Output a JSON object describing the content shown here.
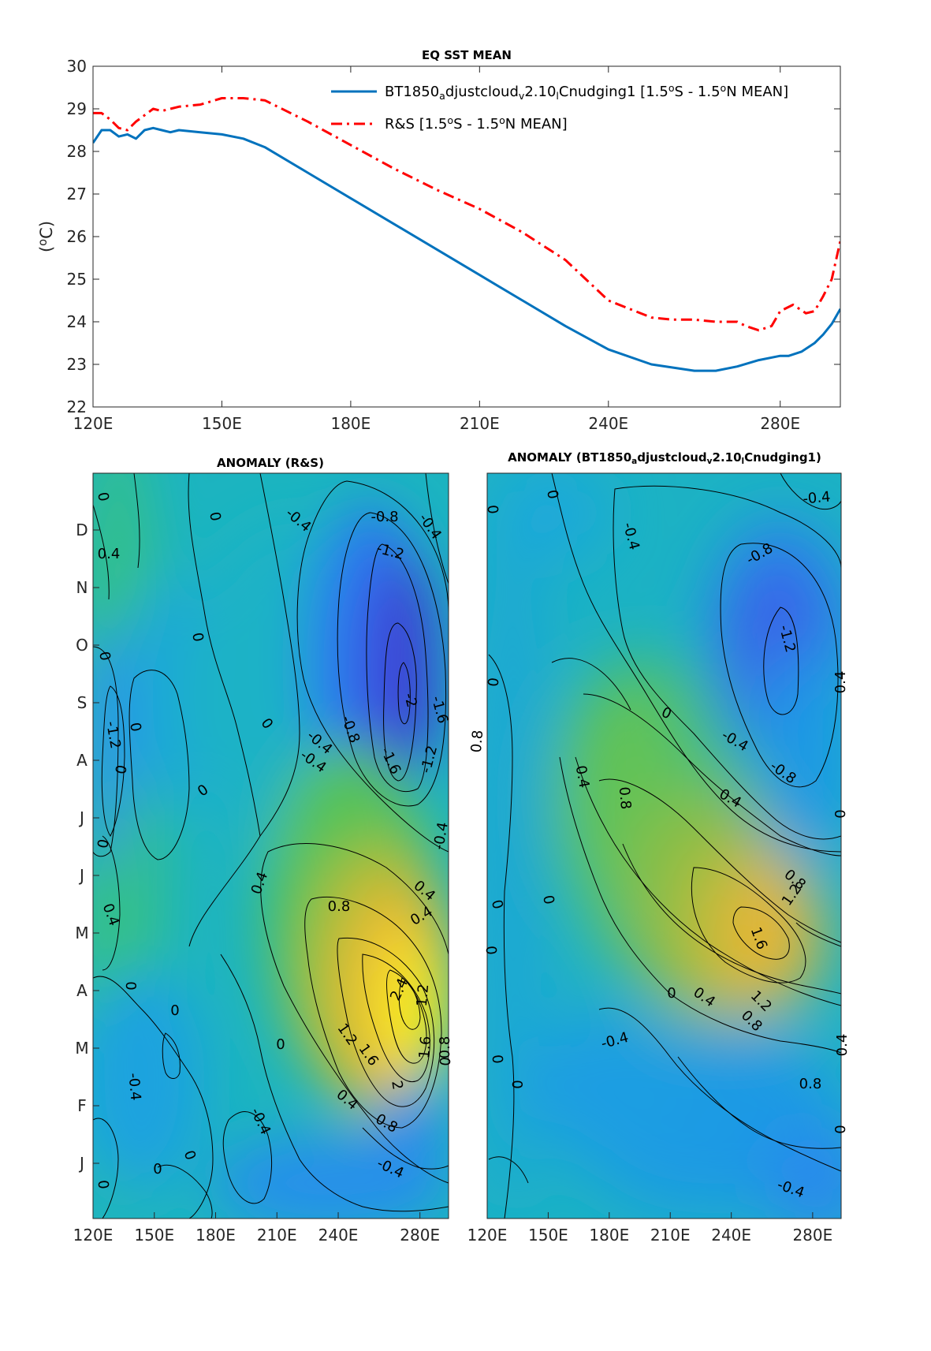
{
  "colors": {
    "model_line": "#0072BD",
    "obs_line": "#FF0000",
    "colormap": [
      "#3e26a8",
      "#2e69f5",
      "#1fa0e0",
      "#17bfb0",
      "#4ac26a",
      "#a4be3a",
      "#e8ba36",
      "#f9d731",
      "#f9fb15"
    ]
  },
  "chart_data": [
    {
      "type": "line",
      "title": "EQ SST MEAN",
      "ylabel": "(°C)",
      "ylabel_parts": {
        "pre": "(",
        "sup": "o",
        "post": "C)"
      },
      "xlim": [
        120,
        294
      ],
      "ylim": [
        22,
        30
      ],
      "xticks": [
        120,
        150,
        180,
        210,
        240,
        280
      ],
      "xticklabels": [
        "120E",
        "150E",
        "180E",
        "210E",
        "240E",
        "280E"
      ],
      "yticks": [
        22,
        23,
        24,
        25,
        26,
        27,
        28,
        29,
        30
      ],
      "yticklabels": [
        "22",
        "23",
        "24",
        "25",
        "26",
        "27",
        "28",
        "29",
        "30"
      ],
      "legend_position": "top-right",
      "series": [
        {
          "name": "BT1850_adjustcloud_v2.10_lCnudging1 [1.5°S - 1.5°N MEAN]",
          "legend_parts": [
            [
              "BT1850",
              ""
            ],
            [
              "a",
              "sub"
            ],
            [
              "djustcloud",
              ""
            ],
            [
              "v",
              "sub"
            ],
            [
              "2.10",
              ""
            ],
            [
              "l",
              "sub"
            ],
            [
              "Cnudging1 [1.5",
              ""
            ],
            [
              "o",
              "sup"
            ],
            [
              "S - 1.5",
              ""
            ],
            [
              "o",
              "sup"
            ],
            [
              "N MEAN]",
              ""
            ]
          ],
          "style": "solid",
          "x": [
            120,
            122,
            124,
            126,
            128,
            130,
            132,
            134,
            136,
            138,
            140,
            145,
            150,
            155,
            160,
            170,
            180,
            190,
            200,
            210,
            220,
            230,
            240,
            250,
            260,
            265,
            270,
            275,
            280,
            282,
            285,
            288,
            290,
            292,
            294
          ],
          "y": [
            28.2,
            28.5,
            28.5,
            28.35,
            28.4,
            28.3,
            28.5,
            28.55,
            28.5,
            28.45,
            28.5,
            28.45,
            28.4,
            28.3,
            28.1,
            27.5,
            26.9,
            26.3,
            25.7,
            25.1,
            24.5,
            23.9,
            23.35,
            23.0,
            22.85,
            22.85,
            22.95,
            23.1,
            23.2,
            23.2,
            23.3,
            23.5,
            23.7,
            23.95,
            24.3
          ]
        },
        {
          "name": "R&S [1.5°S - 1.5°N MEAN]",
          "legend_parts": [
            [
              "R&S [1.5",
              ""
            ],
            [
              "o",
              "sup"
            ],
            [
              "S - 1.5",
              ""
            ],
            [
              "o",
              "sup"
            ],
            [
              "N MEAN]",
              ""
            ]
          ],
          "style": "dashdot",
          "x": [
            120,
            122,
            124,
            126,
            128,
            130,
            132,
            134,
            136,
            138,
            140,
            145,
            150,
            155,
            160,
            170,
            180,
            190,
            200,
            210,
            220,
            230,
            240,
            250,
            255,
            260,
            265,
            270,
            272,
            275,
            278,
            280,
            283,
            286,
            288,
            290,
            292,
            294
          ],
          "y": [
            28.9,
            28.9,
            28.75,
            28.55,
            28.5,
            28.7,
            28.85,
            29.0,
            28.95,
            29.0,
            29.05,
            29.1,
            29.25,
            29.25,
            29.2,
            28.7,
            28.15,
            27.6,
            27.1,
            26.65,
            26.1,
            25.45,
            24.5,
            24.1,
            24.05,
            24.05,
            24.0,
            24.0,
            23.9,
            23.8,
            23.9,
            24.25,
            24.4,
            24.2,
            24.25,
            24.6,
            25.0,
            25.9
          ]
        }
      ]
    },
    {
      "type": "heatmap",
      "title": "ANOMALY (R&S)",
      "xlim": [
        120,
        294
      ],
      "xticks": [
        120,
        150,
        180,
        210,
        240,
        280
      ],
      "xticklabels": [
        "120E",
        "150E",
        "180E",
        "210E",
        "240E",
        "280E"
      ],
      "ylabel": "",
      "yticklabels": [
        "D",
        "N",
        "O",
        "S",
        "A",
        "J",
        "J",
        "M",
        "A",
        "M",
        "F",
        "J"
      ],
      "contour_labels": [
        "0",
        "0",
        "-0.4",
        "-0.8",
        "-0.4",
        "0.4",
        "-1.2",
        "0",
        "0",
        "-2",
        "-1.6",
        "0",
        "-0.4",
        "-0.8",
        "0.8",
        "-0.4",
        "-1.6",
        "-1.2",
        "0",
        "-1.2",
        "0",
        "0",
        "-0.4",
        "0",
        "0.4",
        "0.4",
        "0.8",
        "0.4",
        "0.4",
        "0",
        "2.4",
        "1.2",
        "0",
        "0",
        "1.2",
        "1.6",
        "0.8",
        "0",
        "1.6",
        "2",
        "-0.4",
        "0.4",
        "0.8",
        "-0.4",
        "0",
        "0",
        "-0.4",
        "0"
      ]
    },
    {
      "type": "heatmap",
      "title": "ANOMALY (BT1850_adjustcloud_v2.10_lCnudging1)",
      "title_parts": [
        [
          "ANOMALY (BT1850",
          ""
        ],
        [
          "a",
          "sub"
        ],
        [
          "djustcloud",
          ""
        ],
        [
          "v",
          "sub"
        ],
        [
          "2.10",
          ""
        ],
        [
          "l",
          "sub"
        ],
        [
          "Cnudging1)",
          ""
        ]
      ],
      "xlim": [
        120,
        294
      ],
      "xticks": [
        120,
        150,
        180,
        210,
        240,
        280
      ],
      "xticklabels": [
        "120E",
        "150E",
        "180E",
        "210E",
        "240E",
        "280E"
      ],
      "contour_labels": [
        "-0.4",
        "0",
        "-0.4",
        "-0.8",
        "0",
        "-1.2",
        "0",
        "0.4",
        "0",
        "-0.4",
        "-0.8",
        "0.4",
        "0.8",
        "0.4",
        "0",
        "0.8",
        "1.2",
        "0",
        "0",
        "0",
        "1.6",
        "0",
        "0.4",
        "1.2",
        "0.8",
        "-0.4",
        "0.4",
        "0",
        "0",
        "0.8",
        "0",
        "-0.4"
      ]
    }
  ]
}
